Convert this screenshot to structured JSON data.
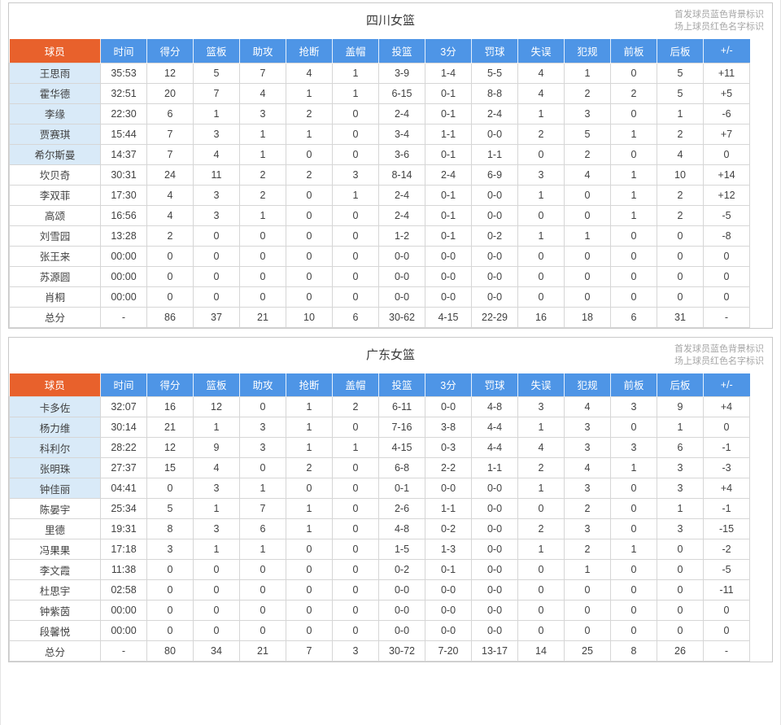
{
  "page": {
    "legend_line1": "首发球员蓝色背景标识",
    "legend_line2": "场上球员红色名字标识"
  },
  "columns": [
    "球员",
    "时间",
    "得分",
    "篮板",
    "助攻",
    "抢断",
    "盖帽",
    "投篮",
    "3分",
    "罚球",
    "失误",
    "犯规",
    "前板",
    "后板",
    "+/-"
  ],
  "colors": {
    "header_blue": "#4E95E6",
    "header_orange": "#E8612C",
    "starter_row_bg": "#D9EAF8",
    "grid_border": "#D6D6D6",
    "body_text": "#414141",
    "legend_text": "#A6A6A6"
  },
  "tables": [
    {
      "title": "四川女篮",
      "rows": [
        {
          "starter": true,
          "cells": [
            "王思雨",
            "35:53",
            "12",
            "5",
            "7",
            "4",
            "1",
            "3-9",
            "1-4",
            "5-5",
            "4",
            "1",
            "0",
            "5",
            "+11"
          ]
        },
        {
          "starter": true,
          "cells": [
            "霍华德",
            "32:51",
            "20",
            "7",
            "4",
            "1",
            "1",
            "6-15",
            "0-1",
            "8-8",
            "4",
            "2",
            "2",
            "5",
            "+5"
          ]
        },
        {
          "starter": true,
          "cells": [
            "李缘",
            "22:30",
            "6",
            "1",
            "3",
            "2",
            "0",
            "2-4",
            "0-1",
            "2-4",
            "1",
            "3",
            "0",
            "1",
            "-6"
          ]
        },
        {
          "starter": true,
          "cells": [
            "贾赛琪",
            "15:44",
            "7",
            "3",
            "1",
            "1",
            "0",
            "3-4",
            "1-1",
            "0-0",
            "2",
            "5",
            "1",
            "2",
            "+7"
          ]
        },
        {
          "starter": true,
          "cells": [
            "希尔斯曼",
            "14:37",
            "7",
            "4",
            "1",
            "0",
            "0",
            "3-6",
            "0-1",
            "1-1",
            "0",
            "2",
            "0",
            "4",
            "0"
          ]
        },
        {
          "starter": false,
          "cells": [
            "坎贝奇",
            "30:31",
            "24",
            "11",
            "2",
            "2",
            "3",
            "8-14",
            "2-4",
            "6-9",
            "3",
            "4",
            "1",
            "10",
            "+14"
          ]
        },
        {
          "starter": false,
          "cells": [
            "李双菲",
            "17:30",
            "4",
            "3",
            "2",
            "0",
            "1",
            "2-4",
            "0-1",
            "0-0",
            "1",
            "0",
            "1",
            "2",
            "+12"
          ]
        },
        {
          "starter": false,
          "cells": [
            "高颂",
            "16:56",
            "4",
            "3",
            "1",
            "0",
            "0",
            "2-4",
            "0-1",
            "0-0",
            "0",
            "0",
            "1",
            "2",
            "-5"
          ]
        },
        {
          "starter": false,
          "cells": [
            "刘雪园",
            "13:28",
            "2",
            "0",
            "0",
            "0",
            "0",
            "1-2",
            "0-1",
            "0-2",
            "1",
            "1",
            "0",
            "0",
            "-8"
          ]
        },
        {
          "starter": false,
          "cells": [
            "张王来",
            "00:00",
            "0",
            "0",
            "0",
            "0",
            "0",
            "0-0",
            "0-0",
            "0-0",
            "0",
            "0",
            "0",
            "0",
            "0"
          ]
        },
        {
          "starter": false,
          "cells": [
            "苏源圆",
            "00:00",
            "0",
            "0",
            "0",
            "0",
            "0",
            "0-0",
            "0-0",
            "0-0",
            "0",
            "0",
            "0",
            "0",
            "0"
          ]
        },
        {
          "starter": false,
          "cells": [
            "肖桐",
            "00:00",
            "0",
            "0",
            "0",
            "0",
            "0",
            "0-0",
            "0-0",
            "0-0",
            "0",
            "0",
            "0",
            "0",
            "0"
          ]
        }
      ],
      "total": {
        "cells": [
          "总分",
          "-",
          "86",
          "37",
          "21",
          "10",
          "6",
          "30-62",
          "4-15",
          "22-29",
          "16",
          "18",
          "6",
          "31",
          "-"
        ]
      }
    },
    {
      "title": "广东女篮",
      "rows": [
        {
          "starter": true,
          "cells": [
            "卡多佐",
            "32:07",
            "16",
            "12",
            "0",
            "1",
            "2",
            "6-11",
            "0-0",
            "4-8",
            "3",
            "4",
            "3",
            "9",
            "+4"
          ]
        },
        {
          "starter": true,
          "cells": [
            "杨力维",
            "30:14",
            "21",
            "1",
            "3",
            "1",
            "0",
            "7-16",
            "3-8",
            "4-4",
            "1",
            "3",
            "0",
            "1",
            "0"
          ]
        },
        {
          "starter": true,
          "cells": [
            "科利尔",
            "28:22",
            "12",
            "9",
            "3",
            "1",
            "1",
            "4-15",
            "0-3",
            "4-4",
            "4",
            "3",
            "3",
            "6",
            "-1"
          ]
        },
        {
          "starter": true,
          "cells": [
            "张明珠",
            "27:37",
            "15",
            "4",
            "0",
            "2",
            "0",
            "6-8",
            "2-2",
            "1-1",
            "2",
            "4",
            "1",
            "3",
            "-3"
          ]
        },
        {
          "starter": true,
          "cells": [
            "钟佳丽",
            "04:41",
            "0",
            "3",
            "1",
            "0",
            "0",
            "0-1",
            "0-0",
            "0-0",
            "1",
            "3",
            "0",
            "3",
            "+4"
          ]
        },
        {
          "starter": false,
          "cells": [
            "陈晏宇",
            "25:34",
            "5",
            "1",
            "7",
            "1",
            "0",
            "2-6",
            "1-1",
            "0-0",
            "0",
            "2",
            "0",
            "1",
            "-1"
          ]
        },
        {
          "starter": false,
          "cells": [
            "里德",
            "19:31",
            "8",
            "3",
            "6",
            "1",
            "0",
            "4-8",
            "0-2",
            "0-0",
            "2",
            "3",
            "0",
            "3",
            "-15"
          ]
        },
        {
          "starter": false,
          "cells": [
            "冯果果",
            "17:18",
            "3",
            "1",
            "1",
            "0",
            "0",
            "1-5",
            "1-3",
            "0-0",
            "1",
            "2",
            "1",
            "0",
            "-2"
          ]
        },
        {
          "starter": false,
          "cells": [
            "李文霞",
            "11:38",
            "0",
            "0",
            "0",
            "0",
            "0",
            "0-2",
            "0-1",
            "0-0",
            "0",
            "1",
            "0",
            "0",
            "-5"
          ]
        },
        {
          "starter": false,
          "cells": [
            "杜思宇",
            "02:58",
            "0",
            "0",
            "0",
            "0",
            "0",
            "0-0",
            "0-0",
            "0-0",
            "0",
            "0",
            "0",
            "0",
            "-11"
          ]
        },
        {
          "starter": false,
          "cells": [
            "钟紫茵",
            "00:00",
            "0",
            "0",
            "0",
            "0",
            "0",
            "0-0",
            "0-0",
            "0-0",
            "0",
            "0",
            "0",
            "0",
            "0"
          ]
        },
        {
          "starter": false,
          "cells": [
            "段馨悦",
            "00:00",
            "0",
            "0",
            "0",
            "0",
            "0",
            "0-0",
            "0-0",
            "0-0",
            "0",
            "0",
            "0",
            "0",
            "0"
          ]
        }
      ],
      "total": {
        "cells": [
          "总分",
          "-",
          "80",
          "34",
          "21",
          "7",
          "3",
          "30-72",
          "7-20",
          "13-17",
          "14",
          "25",
          "8",
          "26",
          "-"
        ]
      }
    }
  ]
}
